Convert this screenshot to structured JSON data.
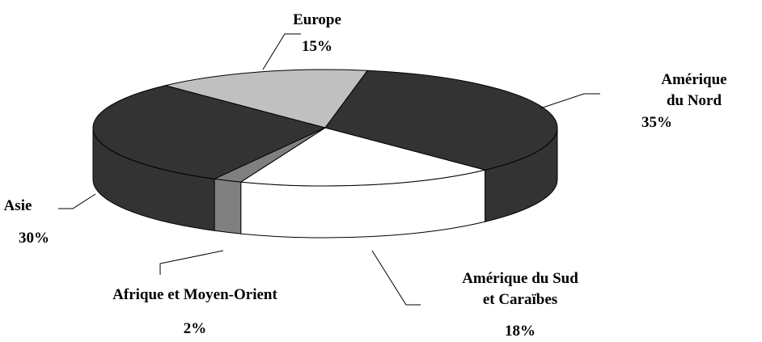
{
  "chart_data": {
    "type": "pie",
    "categories": [
      "Europe",
      "Amérique du Nord",
      "Amérique du Sud\net Caraïbes",
      "Afrique et Moyen-Orient",
      "Asie"
    ],
    "values": [
      15,
      35,
      18,
      2,
      30
    ],
    "value_labels": [
      "15%",
      "35%",
      "18%",
      "2%",
      "30%"
    ],
    "colors": [
      "#c0c0c0",
      "#333333",
      "#ffffff",
      "#808080",
      "#333333"
    ]
  }
}
